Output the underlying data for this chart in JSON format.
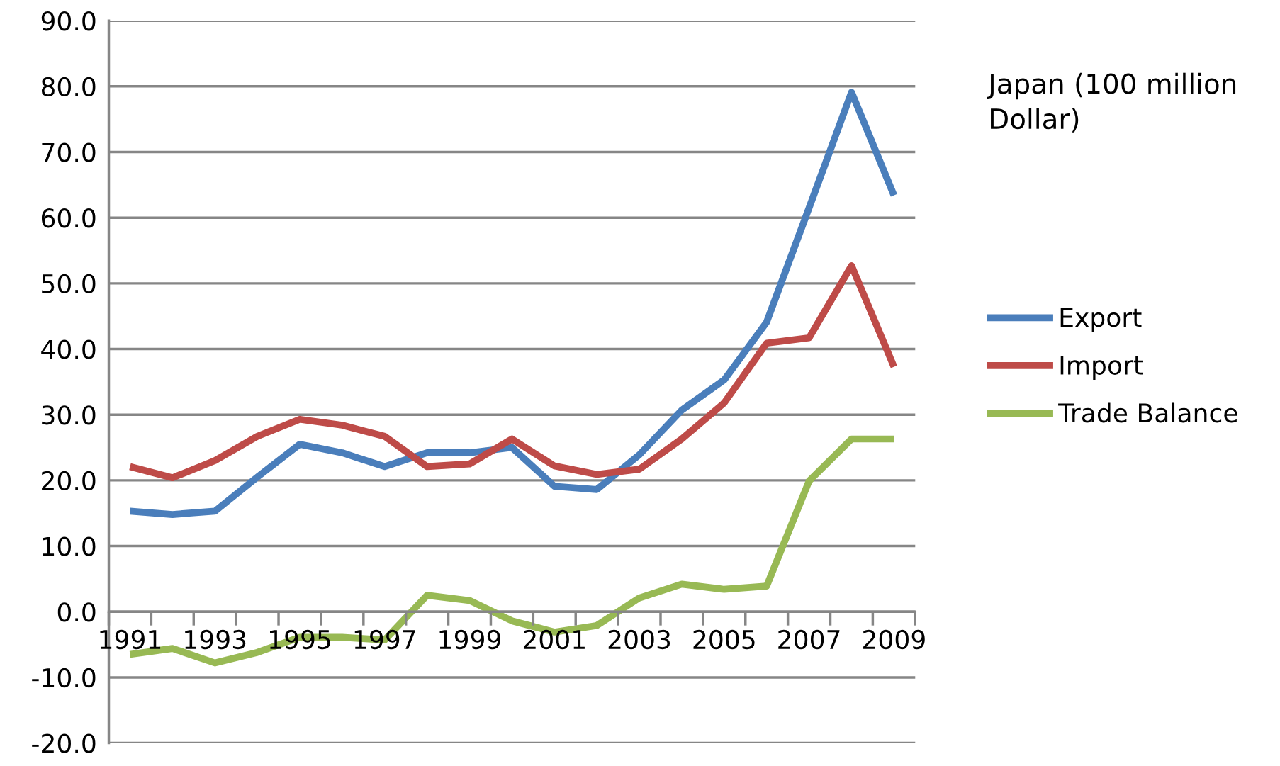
{
  "chart_data": {
    "type": "line",
    "title": "Japan (100 million Dollar)",
    "categories": [
      "1991",
      null,
      "1993",
      null,
      "1995",
      null,
      "1997",
      null,
      "1999",
      null,
      "2001",
      null,
      "2003",
      null,
      "2005",
      null,
      "2007",
      null,
      "2009"
    ],
    "series": [
      {
        "name": "Export",
        "color": "#4a7ebb",
        "values": [
          15.3,
          14.8,
          15.3,
          20.5,
          25.5,
          24.2,
          22.1,
          24.2,
          24.2,
          25.0,
          19.1,
          18.6,
          23.9,
          30.7,
          35.3,
          44.1,
          61.5,
          79.1,
          63.4
        ]
      },
      {
        "name": "Import",
        "color": "#be4b48",
        "values": [
          22.1,
          20.4,
          23.0,
          26.7,
          29.3,
          28.4,
          26.7,
          22.1,
          22.5,
          26.3,
          22.2,
          20.9,
          21.7,
          26.3,
          31.8,
          40.9,
          41.7,
          52.7,
          37.3
        ]
      },
      {
        "name": "Trade Balance",
        "color": "#98b954",
        "values": [
          -6.5,
          -5.6,
          -7.8,
          -6.2,
          -3.9,
          -3.9,
          -4.3,
          2.5,
          1.7,
          -1.4,
          -3.1,
          -2.1,
          2.1,
          4.2,
          3.4,
          3.9,
          19.9,
          26.3,
          26.3
        ]
      }
    ],
    "ylim": [
      -20,
      90
    ],
    "yticks": [
      {
        "value": -20,
        "label": "-20.0"
      },
      {
        "value": -10,
        "label": "-10.0"
      },
      {
        "value": 0,
        "label": "0.0"
      },
      {
        "value": 10,
        "label": "10.0"
      },
      {
        "value": 20,
        "label": "20.0"
      },
      {
        "value": 30,
        "label": "30.0"
      },
      {
        "value": 40,
        "label": "40.0"
      },
      {
        "value": 50,
        "label": "50.0"
      },
      {
        "value": 60,
        "label": "60.0"
      },
      {
        "value": 70,
        "label": "70.0"
      },
      {
        "value": 80,
        "label": "80.0"
      },
      {
        "value": 90,
        "label": "90.0"
      }
    ],
    "grid": "y",
    "legend": "right",
    "marker": "none",
    "line_style": "solid"
  }
}
